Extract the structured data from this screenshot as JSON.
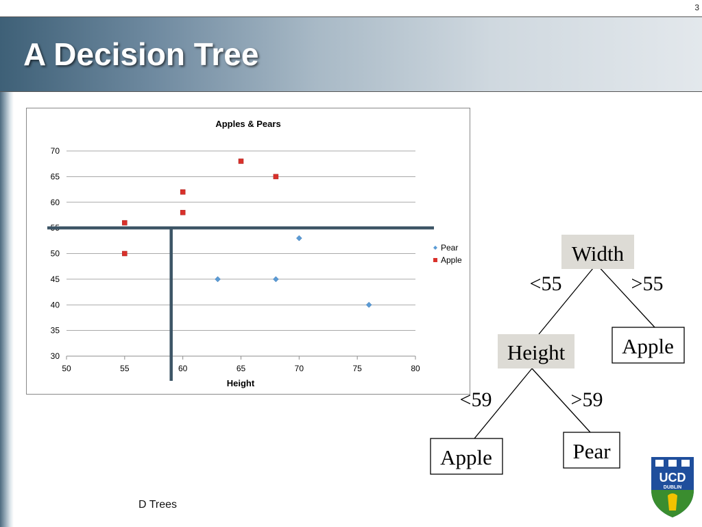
{
  "slide": {
    "page_number": "3",
    "title": "A Decision Tree",
    "footer": "D Trees"
  },
  "chart_data": {
    "type": "scatter",
    "title": "Apples & Pears",
    "xlabel": "Height",
    "ylabel": "",
    "xlim": [
      50,
      80
    ],
    "ylim": [
      30,
      70
    ],
    "x_ticks": [
      "50",
      "55",
      "60",
      "65",
      "70",
      "75",
      "80"
    ],
    "y_ticks": [
      "30",
      "35",
      "40",
      "45",
      "50",
      "55",
      "60",
      "65",
      "70"
    ],
    "grid": "horizontal",
    "legend_position": "right",
    "series": [
      {
        "name": "Pear",
        "color": "#5b9bd5",
        "marker": "diamond",
        "points": [
          [
            63,
            45
          ],
          [
            68,
            45
          ],
          [
            70,
            53
          ],
          [
            76,
            40
          ]
        ]
      },
      {
        "name": "Apple",
        "color": "#d9312b",
        "marker": "square",
        "points": [
          [
            55,
            56
          ],
          [
            55,
            50
          ],
          [
            60,
            62
          ],
          [
            60,
            58
          ],
          [
            65,
            68
          ],
          [
            68,
            65
          ]
        ]
      }
    ],
    "split_lines": {
      "color": "#3d5566",
      "horizontal_at_y": 55,
      "vertical_at_x": 59
    }
  },
  "tree": {
    "root": {
      "label": "Width"
    },
    "root_left_edge": "<55",
    "root_right_edge": ">55",
    "right_leaf": {
      "label": "Apple"
    },
    "mid": {
      "label": "Height"
    },
    "mid_left_edge": "<59",
    "mid_right_edge": ">59",
    "mid_left_leaf": {
      "label": "Apple"
    },
    "mid_right_leaf": {
      "label": "Pear"
    }
  },
  "logo": {
    "text_line1": "UCD",
    "text_line2": "DUBLIN",
    "colors": {
      "blue": "#1f4e9c",
      "green": "#3a8d2f",
      "gold": "#f2c300"
    }
  }
}
